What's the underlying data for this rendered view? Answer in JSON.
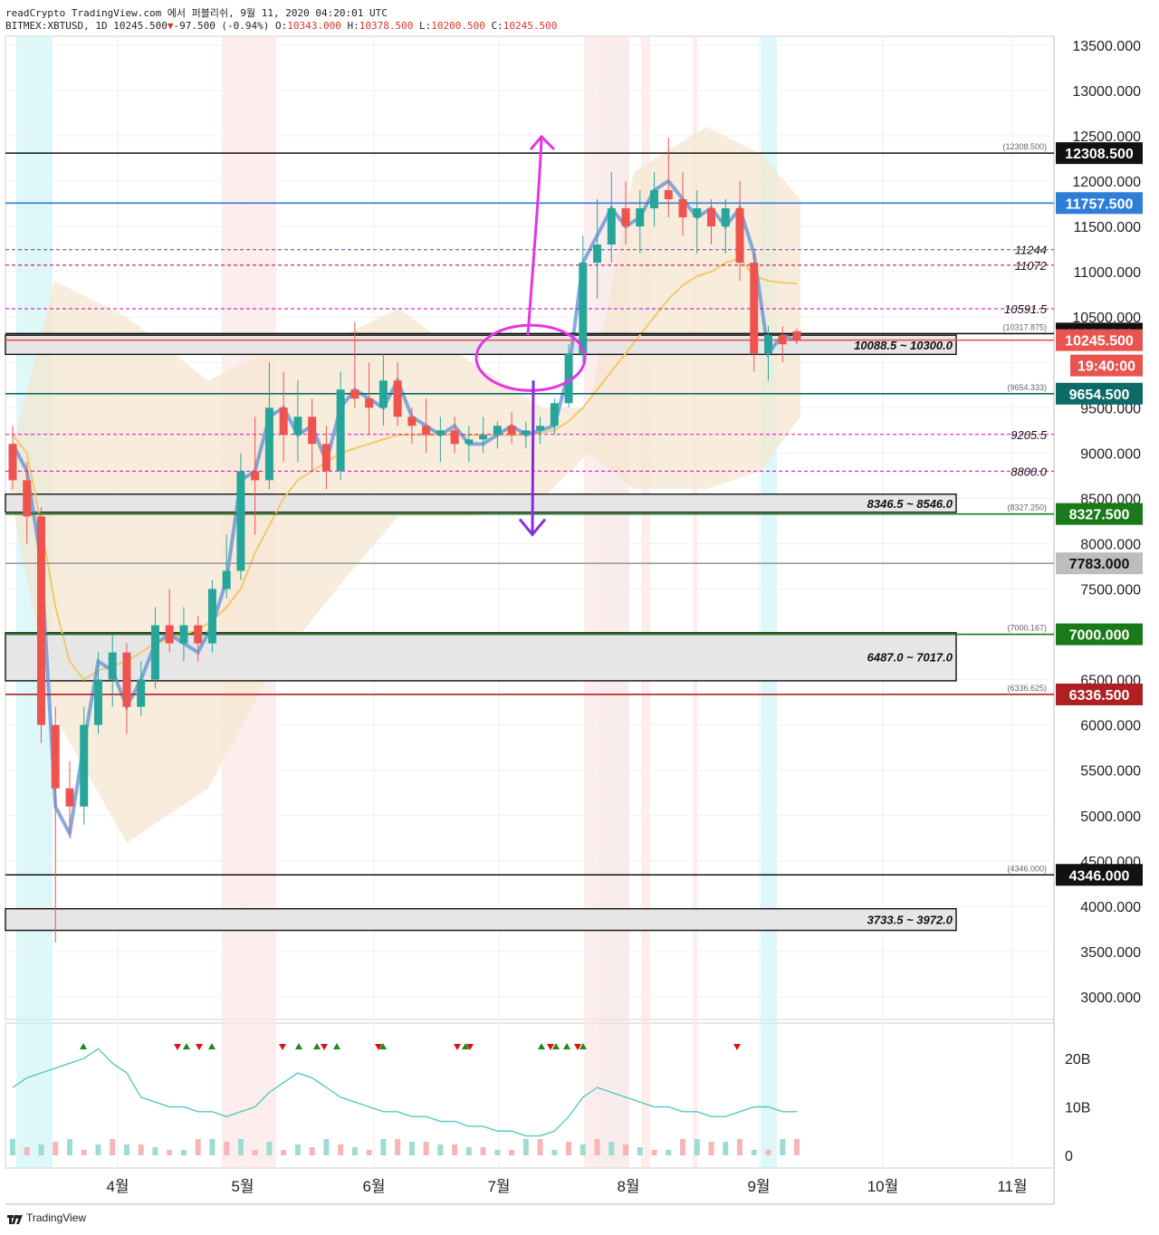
{
  "header": {
    "line1": "readCrypto TradingView.com 에서 퍼블리쉬, 9월 11, 2020 04:20:01 UTC",
    "symbol": "BITMEX:XBTUSD, 1D",
    "last": "10245.500",
    "change_arrow": "▼",
    "change": "-97.500 (-0.94%)",
    "o_label": "O:",
    "o": "10343.000",
    "h_label": "H:",
    "h": "10378.500",
    "l_label": "L:",
    "l": "10200.500",
    "c_label": "C:",
    "c": "10245.500"
  },
  "chart_data": {
    "type": "line",
    "title": "",
    "ylim": [
      2700,
      13700
    ],
    "y_ticks": [
      3000,
      3500,
      4000,
      4500,
      5000,
      5500,
      6000,
      6500,
      7000,
      7500,
      8000,
      8500,
      9000,
      9500,
      10000,
      10500,
      11000,
      11500,
      12000,
      12500,
      13000,
      13500
    ],
    "y_tick_labels": [
      "3000.000",
      "3500.000",
      "4000.000",
      "4500.000",
      "5000.000",
      "5500.000",
      "6000.000",
      "6500.000",
      "7000.000",
      "7500.000",
      "8000.000",
      "8500.000",
      "9000.000",
      "9500.000",
      "10000.000",
      "10500.000",
      "11000.000",
      "11500.000",
      "12000.000",
      "12500.000",
      "13000.000",
      "13500.000"
    ],
    "x_labels": [
      "4월",
      "5월",
      "6월",
      "7월",
      "8월",
      "9월",
      "10월",
      "11월"
    ],
    "series": [
      {
        "values": [
          9100,
          8800,
          7800,
          5100,
          4800,
          5800,
          6700,
          6600,
          6200,
          6500,
          6900,
          7000,
          6900,
          6800,
          7100,
          7600,
          8700,
          8800,
          9400,
          9500,
          9200,
          9300,
          8900,
          9500,
          9700,
          9600,
          9500,
          9800,
          9400,
          9300,
          9200,
          9300,
          9100,
          9100,
          9200,
          9300,
          9200,
          9250,
          9300,
          9900,
          11100,
          11400,
          11700,
          11500,
          11600,
          11900,
          12000,
          11800,
          11600,
          11700,
          11500,
          11700,
          11200,
          10100,
          10300,
          10245
        ]
      },
      {
        "values": [
          9200,
          9000,
          8200,
          7300,
          6700,
          6500,
          6600,
          6650,
          6700,
          6800,
          6900,
          6950,
          7000,
          7050,
          7150,
          7300,
          7500,
          7900,
          8200,
          8500,
          8700,
          8800,
          8900,
          9000,
          9050,
          9100,
          9150,
          9200,
          9200,
          9200,
          9200,
          9200,
          9200,
          9200,
          9200,
          9200,
          9200,
          9220,
          9250,
          9350,
          9500,
          9700,
          9900,
          10100,
          10300,
          10500,
          10700,
          10850,
          10950,
          11000,
          11100,
          11150,
          10950,
          10900,
          10880,
          10870
        ]
      }
    ],
    "candles": [
      [
        9100,
        9300,
        8600,
        8700
      ],
      [
        8700,
        8900,
        8000,
        8300
      ],
      [
        8300,
        8400,
        5800,
        6000
      ],
      [
        6000,
        6200,
        3600,
        5300
      ],
      [
        5300,
        5600,
        4800,
        5100
      ],
      [
        5100,
        6200,
        4900,
        6000
      ],
      [
        6000,
        6800,
        5900,
        6500
      ],
      [
        6500,
        7000,
        6200,
        6800
      ],
      [
        6800,
        6900,
        5900,
        6200
      ],
      [
        6200,
        6700,
        6100,
        6500
      ],
      [
        6500,
        7300,
        6400,
        7100
      ],
      [
        7100,
        7500,
        6800,
        6900
      ],
      [
        6900,
        7300,
        6700,
        7100
      ],
      [
        7100,
        7200,
        6700,
        6900
      ],
      [
        6900,
        7600,
        6800,
        7500
      ],
      [
        7500,
        8100,
        7400,
        7700
      ],
      [
        7700,
        9000,
        7600,
        8800
      ],
      [
        8800,
        9400,
        8100,
        8700
      ],
      [
        8700,
        10000,
        8600,
        9500
      ],
      [
        9500,
        9900,
        8900,
        9200
      ],
      [
        9200,
        9800,
        8900,
        9400
      ],
      [
        9400,
        9600,
        8800,
        9100
      ],
      [
        9100,
        9300,
        8600,
        8800
      ],
      [
        8800,
        9900,
        8700,
        9700
      ],
      [
        9700,
        10450,
        9500,
        9600
      ],
      [
        9600,
        10000,
        9200,
        9500
      ],
      [
        9500,
        10100,
        9300,
        9800
      ],
      [
        9800,
        10000,
        9300,
        9400
      ],
      [
        9400,
        9500,
        9100,
        9300
      ],
      [
        9300,
        9600,
        9000,
        9200
      ],
      [
        9200,
        9400,
        8900,
        9250
      ],
      [
        9250,
        9400,
        9000,
        9100
      ],
      [
        9100,
        9300,
        8900,
        9150
      ],
      [
        9150,
        9400,
        9000,
        9200
      ],
      [
        9200,
        9350,
        9050,
        9300
      ],
      [
        9300,
        9450,
        9100,
        9200
      ],
      [
        9200,
        9350,
        9050,
        9250
      ],
      [
        9250,
        9400,
        9100,
        9300
      ],
      [
        9300,
        9600,
        9200,
        9550
      ],
      [
        9550,
        10200,
        9500,
        10100
      ],
      [
        10100,
        11400,
        10000,
        11100
      ],
      [
        11100,
        11800,
        10700,
        11300
      ],
      [
        11300,
        12100,
        11100,
        11700
      ],
      [
        11700,
        12000,
        11300,
        11500
      ],
      [
        11500,
        11900,
        11200,
        11700
      ],
      [
        11700,
        12100,
        11500,
        11900
      ],
      [
        11900,
        12480,
        11600,
        11800
      ],
      [
        11800,
        12100,
        11400,
        11600
      ],
      [
        11600,
        11900,
        11200,
        11700
      ],
      [
        11700,
        11800,
        11300,
        11500
      ],
      [
        11500,
        11800,
        11200,
        11700
      ],
      [
        11700,
        12000,
        10900,
        11100
      ],
      [
        11100,
        11200,
        9900,
        10100
      ],
      [
        10100,
        10400,
        9800,
        10300
      ],
      [
        10300,
        10400,
        10000,
        10200
      ],
      [
        10343,
        10378.5,
        10200.5,
        10245.5
      ]
    ],
    "levels": [
      {
        "value": 12308.5,
        "label": "12308.500",
        "note": "(12308.500)",
        "color": "#111111"
      },
      {
        "value": 11757.5,
        "label": "11757.500",
        "note": "",
        "color": "#2e7dd7"
      },
      {
        "value": 11244,
        "label": "",
        "note": "11244",
        "color": "#6a3f9f"
      },
      {
        "value": 11072,
        "label": "",
        "note": "11072",
        "color": "#b0002a"
      },
      {
        "value": 10591.5,
        "label": "",
        "note": "10591.5",
        "color": "#c400c4"
      },
      {
        "value": 10318,
        "label": "10318.000",
        "note": "(10317.875)",
        "color": "#111111"
      },
      {
        "value": 10245.5,
        "label": "10245.500",
        "note": "",
        "color": "#e85550"
      },
      {
        "value": 9654.5,
        "label": "9654.500",
        "note": "(9654.333)",
        "color": "#0d6b67"
      },
      {
        "value": 9205.5,
        "label": "",
        "note": "9205.5",
        "color": "#e000c0"
      },
      {
        "value": 8800,
        "label": "",
        "note": "8800.0",
        "color": "#e000c0"
      },
      {
        "value": 8327.5,
        "label": "8327.500",
        "note": "(8327.250)",
        "color": "#1a7a1a"
      },
      {
        "value": 7783,
        "label": "7783.000",
        "note": "",
        "color": "#9e9e9e"
      },
      {
        "value": 7000,
        "label": "7000.000",
        "note": "(7000.167)",
        "color": "#1a7a1a"
      },
      {
        "value": 6336.5,
        "label": "6336.500",
        "note": "(6336.625)",
        "color": "#b02020"
      },
      {
        "value": 4346,
        "label": "4346.000",
        "note": "(4346.000)",
        "color": "#111111"
      }
    ],
    "zones": [
      {
        "low": 10088.5,
        "high": 10300,
        "label": "10088.5 ~ 10300.0"
      },
      {
        "low": 8346.5,
        "high": 8546,
        "label": "8346.5 ~ 8546.0"
      },
      {
        "low": 6487,
        "high": 7017,
        "label": "6487.0 ~ 7017.0"
      },
      {
        "low": 3733.5,
        "high": 3972,
        "label": "3733.5 ~ 3972.0"
      }
    ],
    "countdown": "19:40:00",
    "volume_panel": {
      "ylim": [
        0,
        25
      ],
      "tick_labels": [
        "20B",
        "10B",
        "0"
      ],
      "ticks": [
        20,
        10,
        0
      ]
    }
  },
  "colors": {
    "up": "#26a69a",
    "down": "#ef5350",
    "magenta": "#e535e5",
    "purple": "#8a2be2"
  },
  "brand": "TradingView"
}
